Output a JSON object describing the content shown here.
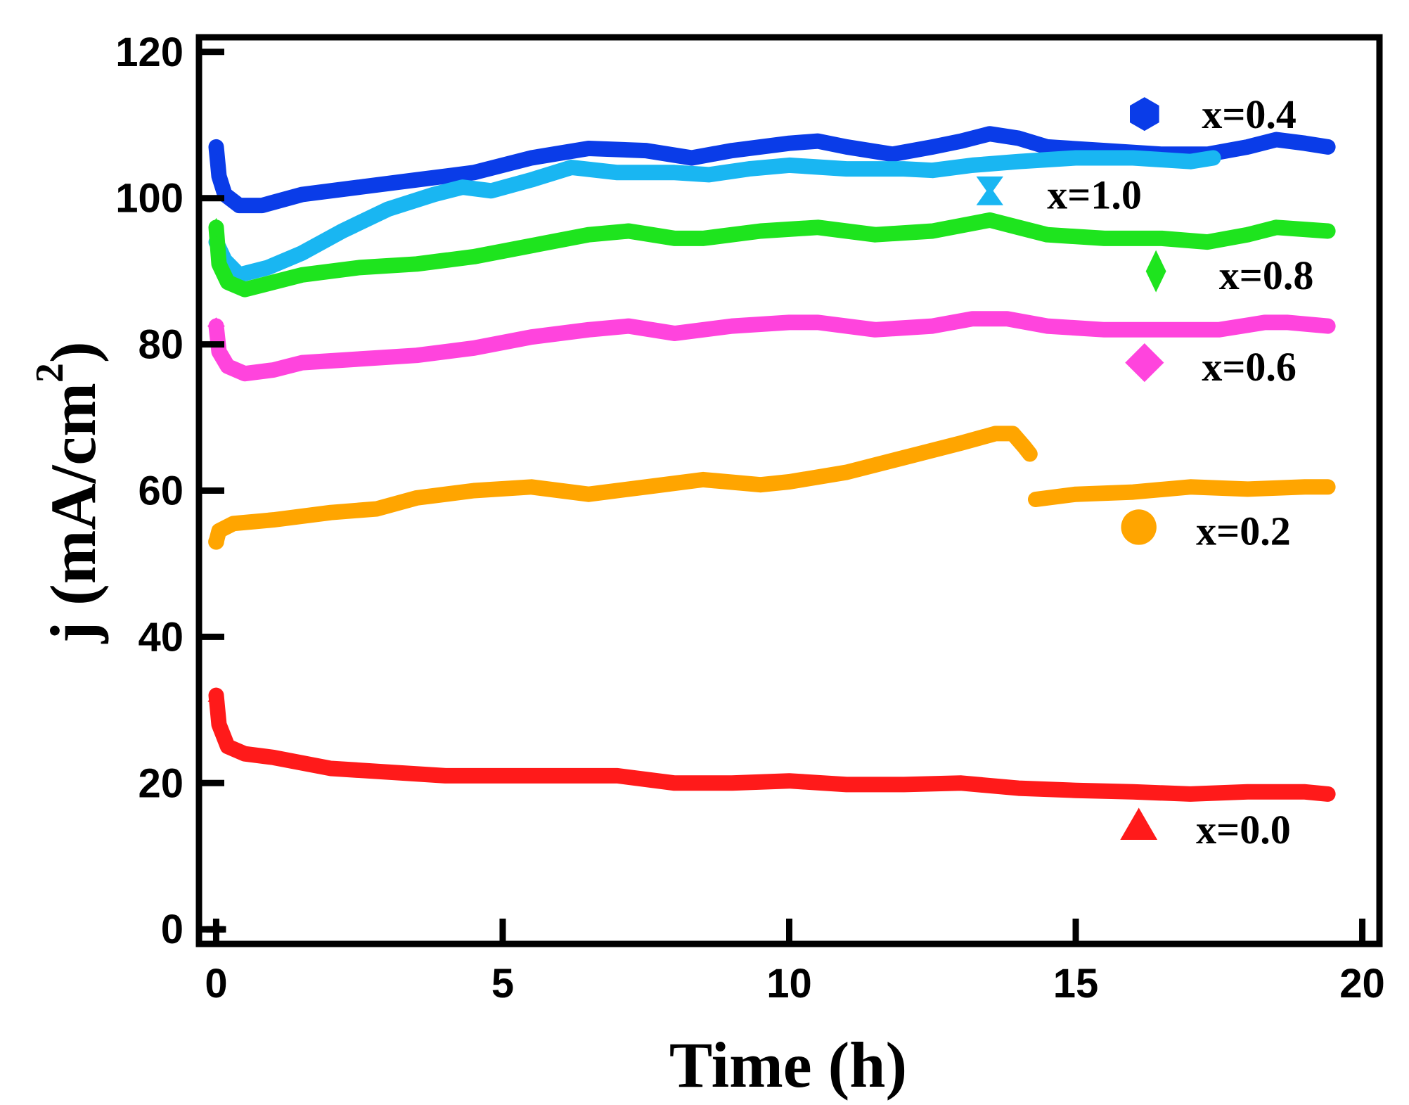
{
  "chart_data": {
    "type": "line",
    "title": "",
    "xlabel": "Time (h)",
    "ylabel_main": "j (mA/cm",
    "ylabel_sup": "2",
    "ylabel_close": ")",
    "xlim": [
      -0.3,
      20.3
    ],
    "ylim": [
      -2,
      122
    ],
    "xticks": [
      0,
      5,
      10,
      15,
      20
    ],
    "xtick_labels": [
      "0",
      "5",
      "10",
      "15",
      "20"
    ],
    "yticks": [
      0,
      20,
      40,
      60,
      80,
      100,
      120
    ],
    "ytick_labels": [
      "0",
      "20",
      "40",
      "60",
      "80",
      "100",
      "120"
    ],
    "grid": false,
    "legend_position": "right, inside plot",
    "series": [
      {
        "name": "x=0.4",
        "color": "#0a3ce8",
        "marker": "hexagon",
        "legend_marker_point": [
          16.2,
          111.5
        ],
        "legend_label_point": [
          17.2,
          111.5
        ],
        "points": [
          [
            0,
            107
          ],
          [
            0.05,
            103
          ],
          [
            0.15,
            100.5
          ],
          [
            0.4,
            99
          ],
          [
            0.8,
            99
          ],
          [
            1.5,
            100.5
          ],
          [
            2.5,
            101.5
          ],
          [
            3.5,
            102.5
          ],
          [
            4.5,
            103.5
          ],
          [
            5.5,
            105.5
          ],
          [
            6.5,
            106.8
          ],
          [
            7.5,
            106.5
          ],
          [
            8.3,
            105.5
          ],
          [
            9,
            106.5
          ],
          [
            10,
            107.5
          ],
          [
            10.5,
            107.8
          ],
          [
            11,
            107
          ],
          [
            11.8,
            106
          ],
          [
            12.5,
            107
          ],
          [
            13,
            107.8
          ],
          [
            13.5,
            108.8
          ],
          [
            14,
            108.2
          ],
          [
            14.5,
            107
          ],
          [
            15.5,
            106.5
          ],
          [
            16.5,
            106
          ],
          [
            17.3,
            106
          ],
          [
            18,
            107
          ],
          [
            18.5,
            108
          ],
          [
            19,
            107.5
          ],
          [
            19.4,
            107
          ]
        ]
      },
      {
        "name": "x=1.0",
        "color": "#19b6f2",
        "marker": "hourglass",
        "legend_marker_point": [
          13.5,
          101
        ],
        "legend_label_point": [
          14.5,
          100.5
        ],
        "points": [
          [
            0,
            94
          ],
          [
            0.15,
            91.5
          ],
          [
            0.4,
            89.5
          ],
          [
            0.9,
            90.5
          ],
          [
            1.5,
            92.5
          ],
          [
            2.2,
            95.5
          ],
          [
            3,
            98.5
          ],
          [
            3.8,
            100.5
          ],
          [
            4.3,
            101.5
          ],
          [
            4.8,
            101
          ],
          [
            5.5,
            102.5
          ],
          [
            6.2,
            104.2
          ],
          [
            7,
            103.5
          ],
          [
            8,
            103.5
          ],
          [
            8.6,
            103.2
          ],
          [
            9.3,
            104
          ],
          [
            10,
            104.5
          ],
          [
            11,
            104
          ],
          [
            12,
            104
          ],
          [
            12.5,
            103.8
          ],
          [
            13.2,
            104.5
          ],
          [
            14,
            105
          ],
          [
            15,
            105.5
          ],
          [
            16,
            105.5
          ],
          [
            17,
            105
          ],
          [
            17.4,
            105.5
          ]
        ]
      },
      {
        "name": "x=0.8",
        "color": "#1ee41e",
        "marker": "diamond",
        "legend_marker_point": [
          16.4,
          90
        ],
        "legend_label_point": [
          17.5,
          89.5
        ],
        "points": [
          [
            0,
            96
          ],
          [
            0.05,
            91
          ],
          [
            0.2,
            88.5
          ],
          [
            0.5,
            87.5
          ],
          [
            1,
            88.5
          ],
          [
            1.5,
            89.5
          ],
          [
            2.5,
            90.5
          ],
          [
            3.5,
            91
          ],
          [
            4.5,
            92
          ],
          [
            5.5,
            93.5
          ],
          [
            6.5,
            95
          ],
          [
            7.2,
            95.5
          ],
          [
            8,
            94.5
          ],
          [
            8.5,
            94.5
          ],
          [
            9.5,
            95.5
          ],
          [
            10.5,
            96
          ],
          [
            11.5,
            95
          ],
          [
            12.5,
            95.5
          ],
          [
            13.5,
            97
          ],
          [
            14,
            96
          ],
          [
            14.5,
            95
          ],
          [
            15.5,
            94.5
          ],
          [
            16.5,
            94.5
          ],
          [
            17.3,
            94
          ],
          [
            18,
            95
          ],
          [
            18.5,
            96
          ],
          [
            19.4,
            95.5
          ]
        ]
      },
      {
        "name": "x=0.6",
        "color": "#ff44dd",
        "marker": "diamond-large",
        "legend_marker_point": [
          16.2,
          77.5
        ],
        "legend_label_point": [
          17.2,
          77
        ],
        "points": [
          [
            0,
            82.5
          ],
          [
            0.05,
            79
          ],
          [
            0.2,
            77
          ],
          [
            0.5,
            76
          ],
          [
            1,
            76.5
          ],
          [
            1.5,
            77.5
          ],
          [
            2.5,
            78
          ],
          [
            3.5,
            78.5
          ],
          [
            4.5,
            79.5
          ],
          [
            5.5,
            81
          ],
          [
            6.5,
            82
          ],
          [
            7.2,
            82.5
          ],
          [
            8,
            81.5
          ],
          [
            9,
            82.5
          ],
          [
            10,
            83
          ],
          [
            10.5,
            83
          ],
          [
            11.5,
            82
          ],
          [
            12.5,
            82.5
          ],
          [
            13.2,
            83.5
          ],
          [
            13.8,
            83.5
          ],
          [
            14.5,
            82.5
          ],
          [
            15.5,
            82
          ],
          [
            16.5,
            82
          ],
          [
            17.5,
            82
          ],
          [
            18.3,
            83
          ],
          [
            18.7,
            83
          ],
          [
            19.4,
            82.5
          ]
        ]
      },
      {
        "name": "x=0.2",
        "color": "#ffa500",
        "marker": "circle",
        "legend_marker_point": [
          16.1,
          55
        ],
        "legend_label_point": [
          17.1,
          54.5
        ],
        "points": [
          [
            0,
            53
          ],
          [
            0.05,
            54.5
          ],
          [
            0.3,
            55.5
          ],
          [
            1,
            56
          ],
          [
            2,
            57
          ],
          [
            2.8,
            57.5
          ],
          [
            3.5,
            59
          ],
          [
            4.5,
            60
          ],
          [
            5.5,
            60.5
          ],
          [
            6.5,
            59.5
          ],
          [
            7.5,
            60.5
          ],
          [
            8.5,
            61.5
          ],
          [
            9.5,
            60.8
          ],
          [
            10,
            61.2
          ],
          [
            11,
            62.5
          ],
          [
            12,
            64.5
          ],
          [
            13,
            66.5
          ],
          [
            13.6,
            67.8
          ],
          [
            13.9,
            67.8
          ],
          [
            14.1,
            66
          ],
          [
            14.2,
            65
          ]
        ],
        "points_2": [
          [
            14.3,
            58.8
          ],
          [
            15,
            59.5
          ],
          [
            16,
            59.8
          ],
          [
            17,
            60.5
          ],
          [
            18,
            60.2
          ],
          [
            19,
            60.5
          ],
          [
            19.4,
            60.5
          ]
        ]
      },
      {
        "name": "x=0.0",
        "color": "#ff1a1a",
        "marker": "triangle",
        "legend_marker_point": [
          16.1,
          14.2
        ],
        "legend_label_point": [
          17.1,
          13.7
        ],
        "points": [
          [
            0,
            32
          ],
          [
            0.05,
            28
          ],
          [
            0.2,
            25
          ],
          [
            0.5,
            24
          ],
          [
            1,
            23.5
          ],
          [
            2,
            22
          ],
          [
            3,
            21.5
          ],
          [
            4,
            21
          ],
          [
            5,
            21
          ],
          [
            6,
            21
          ],
          [
            7,
            21
          ],
          [
            8,
            20
          ],
          [
            9,
            20
          ],
          [
            10,
            20.3
          ],
          [
            11,
            19.8
          ],
          [
            12,
            19.8
          ],
          [
            13,
            20
          ],
          [
            14,
            19.3
          ],
          [
            15,
            19
          ],
          [
            16,
            18.8
          ],
          [
            17,
            18.5
          ],
          [
            18,
            18.8
          ],
          [
            19,
            18.8
          ],
          [
            19.4,
            18.5
          ]
        ]
      }
    ]
  }
}
